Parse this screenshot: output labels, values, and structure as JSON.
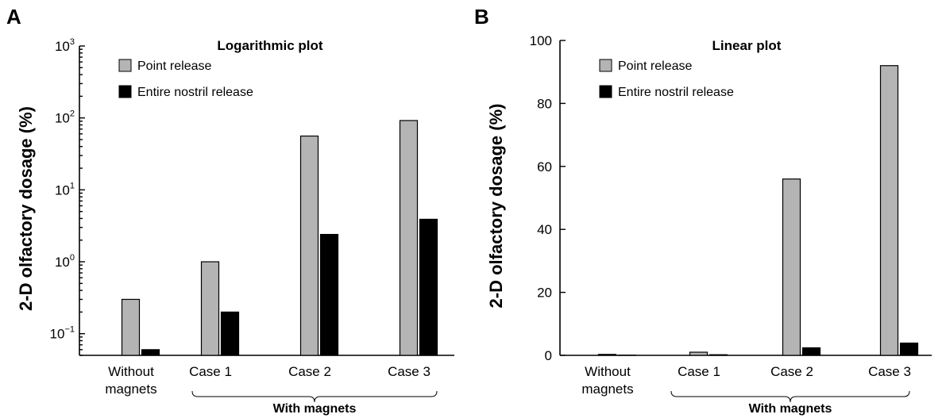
{
  "chart_data": [
    {
      "panel": "A",
      "type": "bar",
      "title": "Logarithmic plot",
      "ylabel": "2-D olfactory dosage (%)",
      "yscale": "log",
      "ylim": [
        0.05,
        1000
      ],
      "yticks": [
        {
          "value": 0.1,
          "base": "10",
          "exp": "−1"
        },
        {
          "value": 1,
          "base": "10",
          "exp": "0"
        },
        {
          "value": 10,
          "base": "10",
          "exp": "1"
        },
        {
          "value": 100,
          "base": "10",
          "exp": "2"
        },
        {
          "value": 1000,
          "base": "10",
          "exp": "3"
        }
      ],
      "categories": [
        {
          "lines": [
            "Without",
            "magnets"
          ]
        },
        {
          "lines": [
            "Case 1"
          ]
        },
        {
          "lines": [
            "Case 2"
          ]
        },
        {
          "lines": [
            "Case 3"
          ]
        }
      ],
      "group_label": "With magnets",
      "legend_position": "top-left",
      "series": [
        {
          "name": "Point release",
          "color": "#b4b4b4",
          "values": [
            0.3,
            1.0,
            56,
            92
          ]
        },
        {
          "name": "Entire nostril release",
          "color": "#000000",
          "values": [
            0.06,
            0.2,
            2.4,
            3.9
          ]
        }
      ]
    },
    {
      "panel": "B",
      "type": "bar",
      "title": "Linear plot",
      "ylabel": "2-D olfactory dosage (%)",
      "yscale": "linear",
      "ylim": [
        0,
        100
      ],
      "yticks": [
        {
          "value": 0,
          "label": "0"
        },
        {
          "value": 20,
          "label": "20"
        },
        {
          "value": 40,
          "label": "40"
        },
        {
          "value": 60,
          "label": "60"
        },
        {
          "value": 80,
          "label": "80"
        },
        {
          "value": 100,
          "label": "100"
        }
      ],
      "categories": [
        {
          "lines": [
            "Without",
            "magnets"
          ]
        },
        {
          "lines": [
            "Case 1"
          ]
        },
        {
          "lines": [
            "Case 2"
          ]
        },
        {
          "lines": [
            "Case 3"
          ]
        }
      ],
      "group_label": "With magnets",
      "legend_position": "top-left",
      "series": [
        {
          "name": "Point release",
          "color": "#b4b4b4",
          "values": [
            0.3,
            1.0,
            56,
            92
          ]
        },
        {
          "name": "Entire nostril release",
          "color": "#000000",
          "values": [
            0.06,
            0.2,
            2.4,
            3.9
          ]
        }
      ]
    }
  ]
}
